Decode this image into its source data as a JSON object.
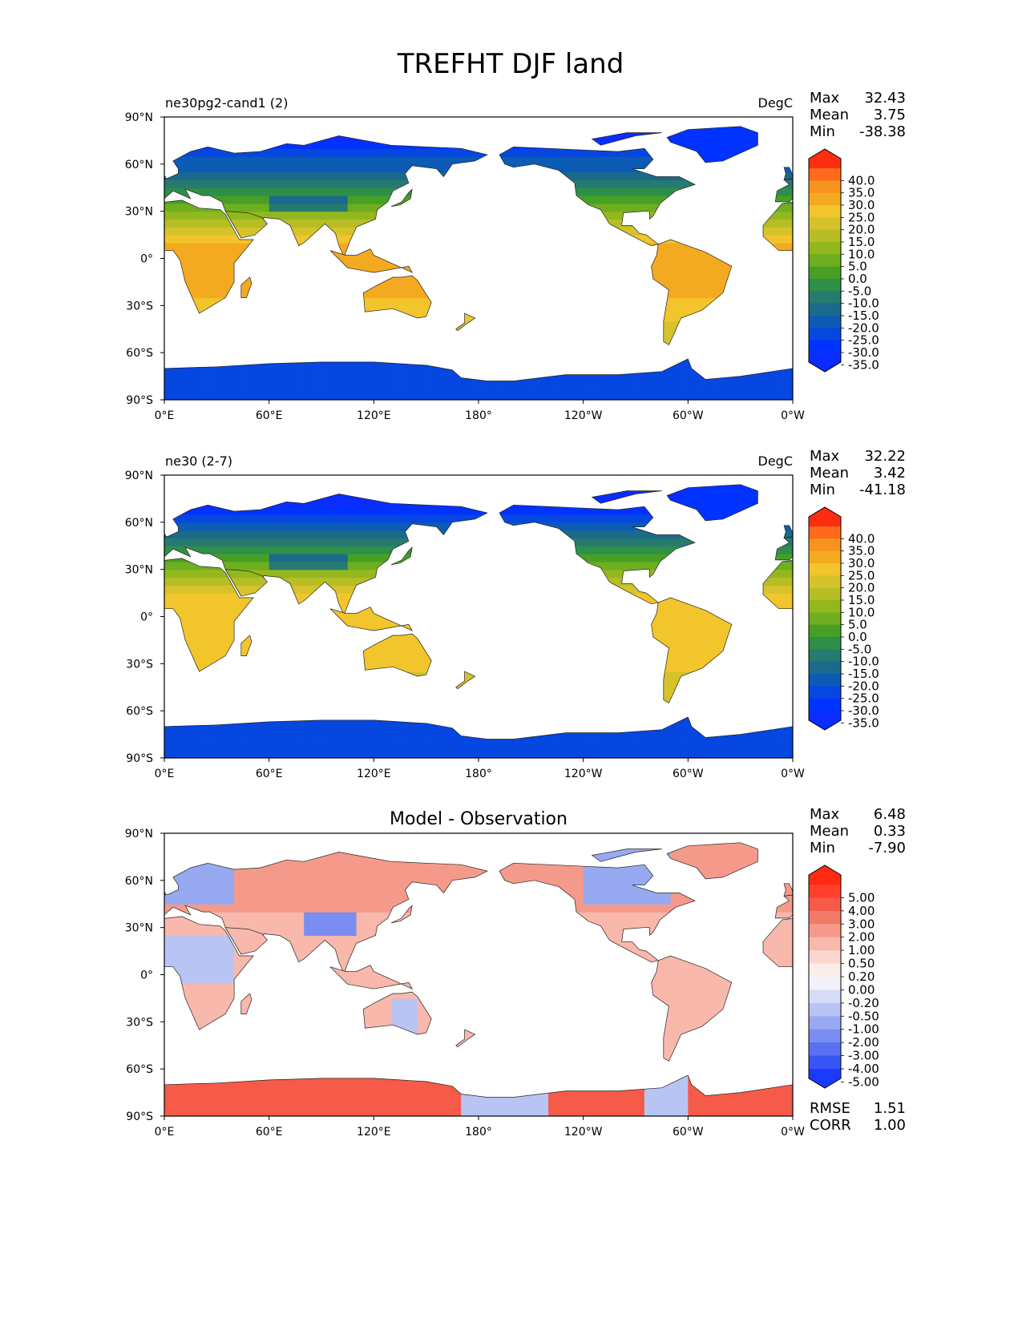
{
  "figure_title": "TREFHT DJF land",
  "chart_data": [
    {
      "type": "heatmap",
      "panel": "test",
      "title": "ne30pg2-cand1 (2)",
      "units": "DegC",
      "stats": [
        {
          "label": "Max",
          "value": "32.43"
        },
        {
          "label": "Mean",
          "value": "3.75"
        },
        {
          "label": "Min",
          "value": "-38.38"
        }
      ],
      "colorbar": {
        "levels": [
          "40.0",
          "35.0",
          "30.0",
          "25.0",
          "20.0",
          "15.0",
          "10.0",
          "5.0",
          "0.0",
          "-5.0",
          "-10.0",
          "-15.0",
          "-20.0",
          "-25.0",
          "-30.0",
          "-35.0"
        ],
        "colors": [
          "#ff2d10",
          "#ff6a1c",
          "#f7931e",
          "#f4aa20",
          "#f2c52c",
          "#d6c22a",
          "#b7bd24",
          "#93b81e",
          "#6eae1f",
          "#47a023",
          "#2e8f49",
          "#277a6f",
          "#1b6a8c",
          "#0c5bb5",
          "#0547e0",
          "#0033ff",
          "#0a2cff"
        ],
        "extend": "both"
      },
      "xticks": [
        "0°E",
        "60°E",
        "120°E",
        "180°",
        "120°W",
        "60°W",
        "0°W"
      ],
      "yticks": [
        "90°N",
        "60°N",
        "30°N",
        "0°",
        "30°S",
        "60°S",
        "90°S"
      ],
      "xlim": [
        0,
        360
      ],
      "ylim": [
        -90,
        90
      ]
    },
    {
      "type": "heatmap",
      "panel": "reference",
      "title": "ne30 (2-7)",
      "units": "DegC",
      "stats": [
        {
          "label": "Max",
          "value": "32.22"
        },
        {
          "label": "Mean",
          "value": "3.42"
        },
        {
          "label": "Min",
          "value": "-41.18"
        }
      ],
      "colorbar": {
        "levels": [
          "40.0",
          "35.0",
          "30.0",
          "25.0",
          "20.0",
          "15.0",
          "10.0",
          "5.0",
          "0.0",
          "-5.0",
          "-10.0",
          "-15.0",
          "-20.0",
          "-25.0",
          "-30.0",
          "-35.0"
        ],
        "colors": [
          "#ff2d10",
          "#ff6a1c",
          "#f7931e",
          "#f4aa20",
          "#f2c52c",
          "#d6c22a",
          "#b7bd24",
          "#93b81e",
          "#6eae1f",
          "#47a023",
          "#2e8f49",
          "#277a6f",
          "#1b6a8c",
          "#0c5bb5",
          "#0547e0",
          "#0033ff",
          "#0a2cff"
        ],
        "extend": "both"
      },
      "xticks": [
        "0°E",
        "60°E",
        "120°E",
        "180°",
        "120°W",
        "60°W",
        "0°W"
      ],
      "yticks": [
        "90°N",
        "60°N",
        "30°N",
        "0°",
        "30°S",
        "60°S",
        "90°S"
      ],
      "xlim": [
        0,
        360
      ],
      "ylim": [
        -90,
        90
      ]
    },
    {
      "type": "heatmap",
      "panel": "difference",
      "title": "Model - Observation",
      "units": "",
      "stats": [
        {
          "label": "Max",
          "value": "6.48"
        },
        {
          "label": "Mean",
          "value": "0.33"
        },
        {
          "label": "Min",
          "value": "-7.90"
        }
      ],
      "extra_stats": [
        {
          "label": "RMSE",
          "value": "1.51"
        },
        {
          "label": "CORR",
          "value": "1.00"
        }
      ],
      "colorbar": {
        "levels": [
          "5.00",
          "4.00",
          "3.00",
          "2.00",
          "1.00",
          "0.50",
          "0.20",
          "0.00",
          "-0.20",
          "-0.50",
          "-1.00",
          "-2.00",
          "-3.00",
          "-4.00",
          "-5.00"
        ],
        "colors": [
          "#ff2a10",
          "#ff3f2a",
          "#f65a48",
          "#f37a68",
          "#f59a8a",
          "#f8b8ac",
          "#fbd6ce",
          "#fcecea",
          "#f2f2fb",
          "#d6dcf8",
          "#b8c5f4",
          "#97a9f0",
          "#7a8df0",
          "#5a70f2",
          "#3a55f6",
          "#1a3bff"
        ],
        "extend": "both"
      },
      "xticks": [
        "0°E",
        "60°E",
        "120°E",
        "180°",
        "120°W",
        "60°W",
        "0°W"
      ],
      "yticks": [
        "90°N",
        "60°N",
        "30°N",
        "0°",
        "30°S",
        "60°S",
        "90°S"
      ],
      "xlim": [
        0,
        360
      ],
      "ylim": [
        -90,
        90
      ]
    }
  ]
}
